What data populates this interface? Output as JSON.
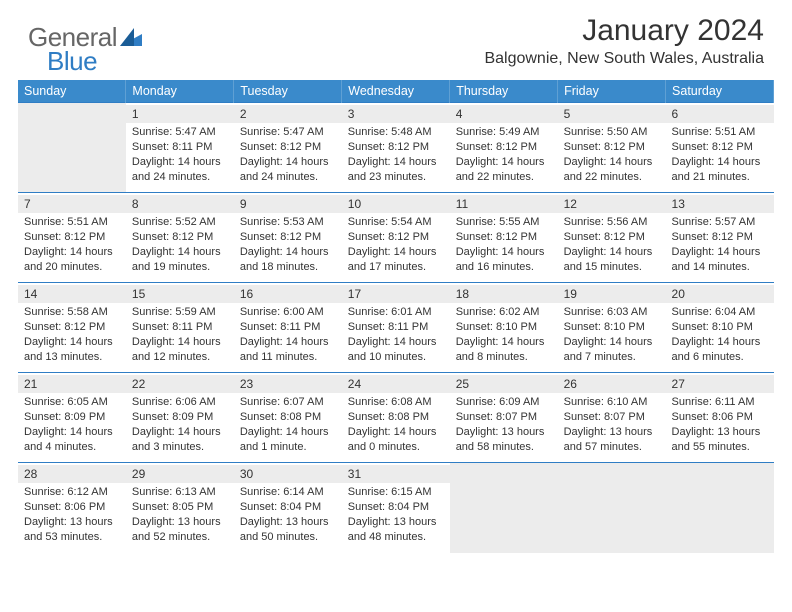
{
  "brand": {
    "part1": "General",
    "part2": "Blue"
  },
  "title": "January 2024",
  "location": "Balgownie, New South Wales, Australia",
  "style": {
    "header_bg": "#3a8acb",
    "border_color": "#2f7dc4",
    "empty_bg": "#ececec",
    "text_color": "#333333",
    "page_bg": "#ffffff",
    "title_fontsize": 30,
    "location_fontsize": 16,
    "dayhead_fontsize": 12.5,
    "cell_fontsize": 11
  },
  "weekdays": [
    "Sunday",
    "Monday",
    "Tuesday",
    "Wednesday",
    "Thursday",
    "Friday",
    "Saturday"
  ],
  "weeks": [
    [
      null,
      {
        "n": "1",
        "r": "Sunrise: 5:47 AM",
        "s": "Sunset: 8:11 PM",
        "d1": "Daylight: 14 hours",
        "d2": "and 24 minutes."
      },
      {
        "n": "2",
        "r": "Sunrise: 5:47 AM",
        "s": "Sunset: 8:12 PM",
        "d1": "Daylight: 14 hours",
        "d2": "and 24 minutes."
      },
      {
        "n": "3",
        "r": "Sunrise: 5:48 AM",
        "s": "Sunset: 8:12 PM",
        "d1": "Daylight: 14 hours",
        "d2": "and 23 minutes."
      },
      {
        "n": "4",
        "r": "Sunrise: 5:49 AM",
        "s": "Sunset: 8:12 PM",
        "d1": "Daylight: 14 hours",
        "d2": "and 22 minutes."
      },
      {
        "n": "5",
        "r": "Sunrise: 5:50 AM",
        "s": "Sunset: 8:12 PM",
        "d1": "Daylight: 14 hours",
        "d2": "and 22 minutes."
      },
      {
        "n": "6",
        "r": "Sunrise: 5:51 AM",
        "s": "Sunset: 8:12 PM",
        "d1": "Daylight: 14 hours",
        "d2": "and 21 minutes."
      }
    ],
    [
      {
        "n": "7",
        "r": "Sunrise: 5:51 AM",
        "s": "Sunset: 8:12 PM",
        "d1": "Daylight: 14 hours",
        "d2": "and 20 minutes."
      },
      {
        "n": "8",
        "r": "Sunrise: 5:52 AM",
        "s": "Sunset: 8:12 PM",
        "d1": "Daylight: 14 hours",
        "d2": "and 19 minutes."
      },
      {
        "n": "9",
        "r": "Sunrise: 5:53 AM",
        "s": "Sunset: 8:12 PM",
        "d1": "Daylight: 14 hours",
        "d2": "and 18 minutes."
      },
      {
        "n": "10",
        "r": "Sunrise: 5:54 AM",
        "s": "Sunset: 8:12 PM",
        "d1": "Daylight: 14 hours",
        "d2": "and 17 minutes."
      },
      {
        "n": "11",
        "r": "Sunrise: 5:55 AM",
        "s": "Sunset: 8:12 PM",
        "d1": "Daylight: 14 hours",
        "d2": "and 16 minutes."
      },
      {
        "n": "12",
        "r": "Sunrise: 5:56 AM",
        "s": "Sunset: 8:12 PM",
        "d1": "Daylight: 14 hours",
        "d2": "and 15 minutes."
      },
      {
        "n": "13",
        "r": "Sunrise: 5:57 AM",
        "s": "Sunset: 8:12 PM",
        "d1": "Daylight: 14 hours",
        "d2": "and 14 minutes."
      }
    ],
    [
      {
        "n": "14",
        "r": "Sunrise: 5:58 AM",
        "s": "Sunset: 8:12 PM",
        "d1": "Daylight: 14 hours",
        "d2": "and 13 minutes."
      },
      {
        "n": "15",
        "r": "Sunrise: 5:59 AM",
        "s": "Sunset: 8:11 PM",
        "d1": "Daylight: 14 hours",
        "d2": "and 12 minutes."
      },
      {
        "n": "16",
        "r": "Sunrise: 6:00 AM",
        "s": "Sunset: 8:11 PM",
        "d1": "Daylight: 14 hours",
        "d2": "and 11 minutes."
      },
      {
        "n": "17",
        "r": "Sunrise: 6:01 AM",
        "s": "Sunset: 8:11 PM",
        "d1": "Daylight: 14 hours",
        "d2": "and 10 minutes."
      },
      {
        "n": "18",
        "r": "Sunrise: 6:02 AM",
        "s": "Sunset: 8:10 PM",
        "d1": "Daylight: 14 hours",
        "d2": "and 8 minutes."
      },
      {
        "n": "19",
        "r": "Sunrise: 6:03 AM",
        "s": "Sunset: 8:10 PM",
        "d1": "Daylight: 14 hours",
        "d2": "and 7 minutes."
      },
      {
        "n": "20",
        "r": "Sunrise: 6:04 AM",
        "s": "Sunset: 8:10 PM",
        "d1": "Daylight: 14 hours",
        "d2": "and 6 minutes."
      }
    ],
    [
      {
        "n": "21",
        "r": "Sunrise: 6:05 AM",
        "s": "Sunset: 8:09 PM",
        "d1": "Daylight: 14 hours",
        "d2": "and 4 minutes."
      },
      {
        "n": "22",
        "r": "Sunrise: 6:06 AM",
        "s": "Sunset: 8:09 PM",
        "d1": "Daylight: 14 hours",
        "d2": "and 3 minutes."
      },
      {
        "n": "23",
        "r": "Sunrise: 6:07 AM",
        "s": "Sunset: 8:08 PM",
        "d1": "Daylight: 14 hours",
        "d2": "and 1 minute."
      },
      {
        "n": "24",
        "r": "Sunrise: 6:08 AM",
        "s": "Sunset: 8:08 PM",
        "d1": "Daylight: 14 hours",
        "d2": "and 0 minutes."
      },
      {
        "n": "25",
        "r": "Sunrise: 6:09 AM",
        "s": "Sunset: 8:07 PM",
        "d1": "Daylight: 13 hours",
        "d2": "and 58 minutes."
      },
      {
        "n": "26",
        "r": "Sunrise: 6:10 AM",
        "s": "Sunset: 8:07 PM",
        "d1": "Daylight: 13 hours",
        "d2": "and 57 minutes."
      },
      {
        "n": "27",
        "r": "Sunrise: 6:11 AM",
        "s": "Sunset: 8:06 PM",
        "d1": "Daylight: 13 hours",
        "d2": "and 55 minutes."
      }
    ],
    [
      {
        "n": "28",
        "r": "Sunrise: 6:12 AM",
        "s": "Sunset: 8:06 PM",
        "d1": "Daylight: 13 hours",
        "d2": "and 53 minutes."
      },
      {
        "n": "29",
        "r": "Sunrise: 6:13 AM",
        "s": "Sunset: 8:05 PM",
        "d1": "Daylight: 13 hours",
        "d2": "and 52 minutes."
      },
      {
        "n": "30",
        "r": "Sunrise: 6:14 AM",
        "s": "Sunset: 8:04 PM",
        "d1": "Daylight: 13 hours",
        "d2": "and 50 minutes."
      },
      {
        "n": "31",
        "r": "Sunrise: 6:15 AM",
        "s": "Sunset: 8:04 PM",
        "d1": "Daylight: 13 hours",
        "d2": "and 48 minutes."
      },
      null,
      null,
      null
    ]
  ]
}
